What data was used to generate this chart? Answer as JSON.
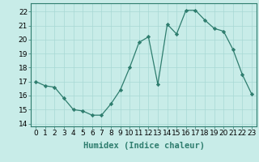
{
  "x": [
    0,
    1,
    2,
    3,
    4,
    5,
    6,
    7,
    8,
    9,
    10,
    11,
    12,
    13,
    14,
    15,
    16,
    17,
    18,
    19,
    20,
    21,
    22,
    23
  ],
  "y": [
    17.0,
    16.7,
    16.6,
    15.8,
    15.0,
    14.9,
    14.6,
    14.6,
    15.4,
    16.4,
    18.0,
    19.8,
    20.2,
    16.8,
    21.1,
    20.4,
    22.1,
    22.1,
    21.4,
    20.8,
    20.6,
    19.3,
    17.5,
    16.1
  ],
  "xlabel": "Humidex (Indice chaleur)",
  "ylim": [
    13.8,
    22.6
  ],
  "xlim": [
    -0.5,
    23.5
  ],
  "yticks": [
    14,
    15,
    16,
    17,
    18,
    19,
    20,
    21,
    22
  ],
  "xticks": [
    0,
    1,
    2,
    3,
    4,
    5,
    6,
    7,
    8,
    9,
    10,
    11,
    12,
    13,
    14,
    15,
    16,
    17,
    18,
    19,
    20,
    21,
    22,
    23
  ],
  "line_color": "#2e7d6e",
  "marker_color": "#2e7d6e",
  "bg_color": "#c8ece8",
  "grid_color": "#a8d8d4",
  "tick_fontsize": 6.5,
  "xlabel_fontsize": 7.5
}
